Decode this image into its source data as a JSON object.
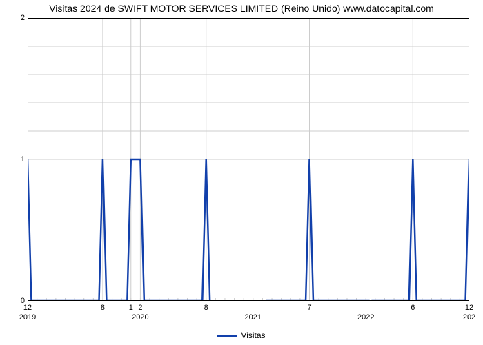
{
  "chart": {
    "type": "line",
    "title": "Visitas 2024 de SWIFT MOTOR SERVICES LIMITED (Reino Unido) www.datocapital.com",
    "title_fontsize": 14,
    "title_color": "#000000",
    "background_color": "#ffffff",
    "plot_border_color": "#000000",
    "grid_color": "#cccccc",
    "axis_tick_fontsize": 11,
    "axis_tick_color": "#000000",
    "y": {
      "min": 0,
      "max": 2,
      "ticks": [
        0,
        1,
        2
      ]
    },
    "x": {
      "min": 0,
      "max": 47,
      "month_ticks": [
        {
          "pos": 0,
          "label": "12"
        },
        {
          "pos": 8,
          "label": "8"
        },
        {
          "pos": 11,
          "label": "1"
        },
        {
          "pos": 12,
          "label": "2"
        },
        {
          "pos": 19,
          "label": "8"
        },
        {
          "pos": 30,
          "label": "7"
        },
        {
          "pos": 41,
          "label": "6"
        },
        {
          "pos": 47,
          "label": "12"
        }
      ],
      "year_ticks": [
        {
          "pos": 0,
          "label": "2019"
        },
        {
          "pos": 12,
          "label": "2020"
        },
        {
          "pos": 24,
          "label": "2021"
        },
        {
          "pos": 36,
          "label": "2022"
        },
        {
          "pos": 47,
          "label": "202"
        }
      ]
    },
    "series": {
      "name": "Visitas",
      "color": "#1240ab",
      "stroke_width": 2.5,
      "points": [
        [
          0,
          1
        ],
        [
          0.4,
          0
        ],
        [
          7.6,
          0
        ],
        [
          8,
          1
        ],
        [
          8.4,
          0
        ],
        [
          10.6,
          0
        ],
        [
          11,
          1
        ],
        [
          12,
          1
        ],
        [
          12.4,
          0
        ],
        [
          14.4,
          0
        ],
        [
          14.6,
          0
        ],
        [
          18.6,
          0
        ],
        [
          19,
          1
        ],
        [
          19.4,
          0
        ],
        [
          25.4,
          0
        ],
        [
          25.6,
          0
        ],
        [
          29.6,
          0
        ],
        [
          30,
          1
        ],
        [
          30.4,
          0
        ],
        [
          36.4,
          0
        ],
        [
          36.6,
          0
        ],
        [
          40.6,
          0
        ],
        [
          41,
          1
        ],
        [
          41.4,
          0
        ],
        [
          46.6,
          0
        ],
        [
          47,
          1
        ]
      ],
      "gaps_after_index": [
        13,
        19,
        25
      ]
    },
    "legend": {
      "label": "Visitas",
      "swatch_width": 28,
      "swatch_height": 3
    }
  }
}
